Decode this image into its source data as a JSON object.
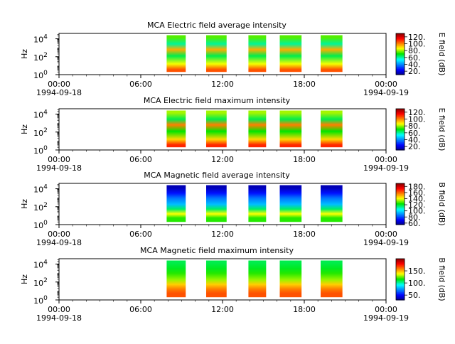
{
  "figure": {
    "background": "#ffffff"
  },
  "chart_data": [
    {
      "type": "heatmap",
      "title": "MCA  Electric field average intensity",
      "xlabel": "",
      "ylabel": "Hz",
      "yscale": "log",
      "ylim_exp": [
        0,
        4.6
      ],
      "y_ticks": [
        {
          "exp": 0,
          "label": "10"
        },
        {
          "exp": 2,
          "label": "10"
        },
        {
          "exp": 4,
          "label": "10"
        }
      ],
      "xlim_hours": [
        0,
        24
      ],
      "x_ticks": [
        {
          "hour": 0,
          "time": "00:00",
          "date": "1994-09-18"
        },
        {
          "hour": 6,
          "time": "06:00",
          "date": ""
        },
        {
          "hour": 12,
          "time": "12:00",
          "date": ""
        },
        {
          "hour": 18,
          "time": "18:00",
          "date": ""
        },
        {
          "hour": 24,
          "time": "00:00",
          "date": "1994-09-19"
        }
      ],
      "colorbar": {
        "label": "E field (dB)",
        "range": [
          10,
          130
        ],
        "ticks": [
          "20.",
          "40.",
          "60.",
          "80.",
          "100.",
          "120."
        ],
        "tick_values": [
          20,
          40,
          60,
          80,
          100,
          120
        ]
      },
      "data_segments_hours": [
        [
          7.9,
          9.3
        ],
        [
          10.8,
          12.3
        ],
        [
          13.9,
          15.2
        ],
        [
          16.2,
          17.8
        ],
        [
          19.2,
          20.8
        ]
      ],
      "spectrum_profile": {
        "freq_exp": [
          0.3,
          1.0,
          2.0,
          2.8,
          3.5,
          4.3
        ],
        "db": [
          105,
          85,
          65,
          95,
          60,
          75
        ]
      }
    },
    {
      "type": "heatmap",
      "title": "MCA  Electric field maximum intensity",
      "xlabel": "",
      "ylabel": "Hz",
      "yscale": "log",
      "ylim_exp": [
        0,
        4.6
      ],
      "y_ticks": [
        {
          "exp": 0,
          "label": "10"
        },
        {
          "exp": 2,
          "label": "10"
        },
        {
          "exp": 4,
          "label": "10"
        }
      ],
      "xlim_hours": [
        0,
        24
      ],
      "x_ticks": [
        {
          "hour": 0,
          "time": "00:00",
          "date": "1994-09-18"
        },
        {
          "hour": 6,
          "time": "06:00",
          "date": ""
        },
        {
          "hour": 12,
          "time": "12:00",
          "date": ""
        },
        {
          "hour": 18,
          "time": "18:00",
          "date": ""
        },
        {
          "hour": 24,
          "time": "00:00",
          "date": "1994-09-19"
        }
      ],
      "colorbar": {
        "label": "E field (dB)",
        "range": [
          10,
          130
        ],
        "ticks": [
          "20.",
          "40.",
          "60.",
          "80.",
          "100.",
          "120."
        ],
        "tick_values": [
          20,
          40,
          60,
          80,
          100,
          120
        ]
      },
      "data_segments_hours": [
        [
          7.9,
          9.3
        ],
        [
          10.8,
          12.3
        ],
        [
          13.9,
          15.2
        ],
        [
          16.2,
          17.8
        ],
        [
          19.2,
          20.8
        ]
      ],
      "spectrum_profile": {
        "freq_exp": [
          0.3,
          1.0,
          2.0,
          2.8,
          3.5,
          4.3
        ],
        "db": [
          110,
          90,
          70,
          100,
          65,
          80
        ]
      }
    },
    {
      "type": "heatmap",
      "title": "MCA  Magnetic field average intensity",
      "xlabel": "",
      "ylabel": "Hz",
      "yscale": "log",
      "ylim_exp": [
        0,
        4.6
      ],
      "y_ticks": [
        {
          "exp": 0,
          "label": "10"
        },
        {
          "exp": 2,
          "label": "10"
        },
        {
          "exp": 4,
          "label": "10"
        }
      ],
      "xlim_hours": [
        0,
        24
      ],
      "x_ticks": [
        {
          "hour": 0,
          "time": "00:00",
          "date": "1994-09-18"
        },
        {
          "hour": 6,
          "time": "06:00",
          "date": ""
        },
        {
          "hour": 12,
          "time": "12:00",
          "date": ""
        },
        {
          "hour": 18,
          "time": "18:00",
          "date": ""
        },
        {
          "hour": 24,
          "time": "00:00",
          "date": "1994-09-19"
        }
      ],
      "colorbar": {
        "label": "B field (dB)",
        "range": [
          55,
          190
        ],
        "ticks": [
          "60.",
          "80.",
          "100.",
          "120.",
          "140.",
          "160.",
          "180."
        ],
        "tick_values": [
          60,
          80,
          100,
          120,
          140,
          160,
          180
        ]
      },
      "data_segments_hours": [
        [
          7.9,
          9.3
        ],
        [
          10.8,
          12.3
        ],
        [
          13.9,
          15.2
        ],
        [
          16.2,
          17.8
        ],
        [
          19.2,
          20.8
        ]
      ],
      "spectrum_profile": {
        "freq_exp": [
          0.5,
          1.0,
          1.6,
          2.2,
          3.0,
          3.6,
          4.3
        ],
        "db": [
          125,
          140,
          115,
          95,
          85,
          72,
          60
        ]
      }
    },
    {
      "type": "heatmap",
      "title": "MCA  Magnetic field maximum intensity",
      "xlabel": "",
      "ylabel": "Hz",
      "yscale": "log",
      "ylim_exp": [
        0,
        4.6
      ],
      "y_ticks": [
        {
          "exp": 0,
          "label": "10"
        },
        {
          "exp": 2,
          "label": "10"
        },
        {
          "exp": 4,
          "label": "10"
        }
      ],
      "xlim_hours": [
        0,
        24
      ],
      "x_ticks": [
        {
          "hour": 0,
          "time": "00:00",
          "date": "1994-09-18"
        },
        {
          "hour": 6,
          "time": "06:00",
          "date": ""
        },
        {
          "hour": 12,
          "time": "12:00",
          "date": ""
        },
        {
          "hour": 18,
          "time": "18:00",
          "date": ""
        },
        {
          "hour": 24,
          "time": "00:00",
          "date": "1994-09-19"
        }
      ],
      "colorbar": {
        "label": "B field (dB)",
        "range": [
          30,
          200
        ],
        "ticks": [
          "50.",
          "100.",
          "150."
        ],
        "tick_values": [
          50,
          100,
          150
        ]
      },
      "data_segments_hours": [
        [
          7.9,
          9.3
        ],
        [
          10.8,
          12.3
        ],
        [
          13.9,
          15.2
        ],
        [
          16.2,
          17.8
        ],
        [
          19.2,
          20.8
        ]
      ],
      "spectrum_profile": {
        "freq_exp": [
          0.5,
          1.0,
          1.6,
          2.2,
          3.0,
          3.6,
          4.3
        ],
        "db": [
          165,
          158,
          145,
          128,
          118,
          112,
          108
        ]
      }
    }
  ]
}
